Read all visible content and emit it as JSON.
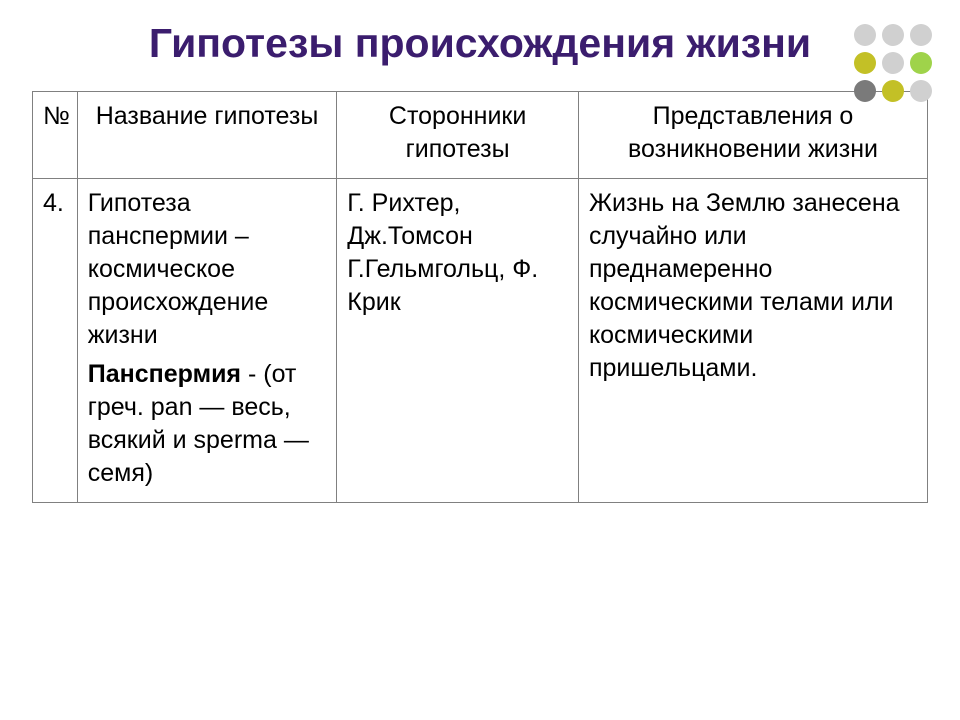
{
  "title": "Гипотезы происхождения жизни",
  "title_color": "#3b1d6e",
  "title_fontsize": 41,
  "body_fontsize": 25,
  "text_color": "#000000",
  "border_color": "#808080",
  "background_color": "#ffffff",
  "decoration": {
    "dot_size": 22,
    "gap": 6,
    "colors": [
      "#d0d0d0",
      "#d0d0d0",
      "#d0d0d0",
      "#c3c026",
      "#d0d0d0",
      "#9fd34a",
      "#7a7a7a",
      "#c3c026",
      "#d0d0d0"
    ]
  },
  "table": {
    "col_widths_pct": [
      5,
      29,
      27,
      39
    ],
    "headers": [
      "№",
      "Название гипотезы",
      "Сторонники гипотезы",
      "Представления о возникновении жизни"
    ],
    "row": {
      "num": "4.",
      "name_main": "Гипотеза панспермии – космическое происхождение жизни",
      "name_term": "Панспермия",
      "name_etym": " - (от греч. pan — весь, всякий и sperma — семя)",
      "proponents": "Г. Рихтер, Дж.Томсон Г.Гельмгольц, Ф. Крик",
      "description": "Жизнь на Землю занесена случайно или преднамеренно космическими телами или космическими пришельцами."
    }
  }
}
